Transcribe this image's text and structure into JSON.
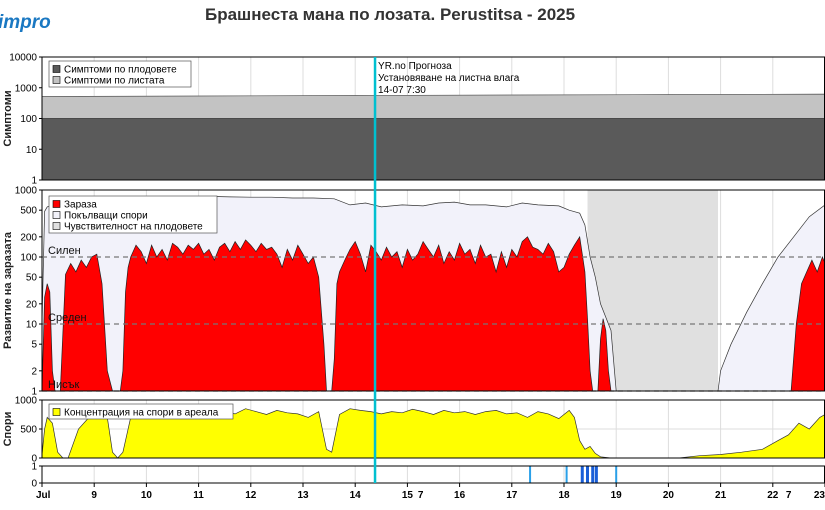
{
  "header": {
    "logo_text": "impro",
    "title": "Брашнеста мана по лозата.  Perustitsa - 2025"
  },
  "colors": {
    "fruit_symptoms": "#5a5a5a",
    "leaf_symptoms": "#c3c3c3",
    "infection": "#ff0000",
    "germinating_spores": "#f2f2fa",
    "fruit_susceptibility": "#e0e0e0",
    "spore_concentration": "#ffff00",
    "forecast_line": "#00c0d0",
    "wetness": "#1a5fd8"
  },
  "forecast": {
    "line1": "YR.no Прогноза",
    "line2": "Установяване на листна влага",
    "line3": "14-07 7:30",
    "x": 14.38
  },
  "chart_data": [
    {
      "type": "area",
      "ylabel": "Симптоми",
      "yscale": "log",
      "ylim": [
        1,
        10000
      ],
      "yticks": [
        "10000",
        "1000",
        "100",
        "10",
        "1"
      ],
      "legend": [
        "Симптоми по плодовете",
        "Симптоми по листата"
      ],
      "legend_position": "top-left",
      "series": [
        {
          "name": "Симптоми по плодовете",
          "x": [
            8,
            23
          ],
          "values": [
            100,
            100
          ]
        },
        {
          "name": "Симптоми по листата",
          "x": [
            8,
            11,
            14,
            17,
            20,
            23
          ],
          "values": [
            520,
            540,
            560,
            580,
            600,
            620
          ]
        }
      ]
    },
    {
      "type": "area",
      "ylabel": "Развитие на заразата",
      "yscale": "log",
      "ylim": [
        1,
        1000
      ],
      "yticks": [
        "1000",
        "500",
        "200",
        "100",
        "50",
        "20",
        "10",
        "5",
        "2",
        "1"
      ],
      "legend": [
        "Зараза",
        "Покълващи спори",
        "Чувствителност на плодовете"
      ],
      "legend_position": "top-left",
      "levels": [
        {
          "label": "Силен",
          "value": 100
        },
        {
          "label": "Среден",
          "value": 10
        },
        {
          "label": "Нисък",
          "value": 1
        }
      ],
      "series": [
        {
          "name": "Зараза",
          "x": [
            8,
            8.05,
            8.1,
            8.15,
            8.2,
            8.25,
            8.3,
            8.35,
            8.45,
            8.55,
            8.65,
            8.75,
            8.85,
            8.95,
            9.05,
            9.15,
            9.25,
            9.35,
            9.45,
            9.5,
            9.55,
            9.6,
            9.65,
            9.7,
            9.8,
            9.9,
            10,
            10.1,
            10.2,
            10.3,
            10.4,
            10.5,
            10.6,
            10.7,
            10.8,
            10.9,
            11,
            11.1,
            11.2,
            11.3,
            11.4,
            11.5,
            11.6,
            11.7,
            11.8,
            11.9,
            12,
            12.1,
            12.2,
            12.3,
            12.4,
            12.5,
            12.6,
            12.7,
            12.8,
            12.9,
            13,
            13.1,
            13.2,
            13.3,
            13.4,
            13.45,
            13.5,
            13.55,
            13.6,
            13.65,
            13.7,
            13.8,
            13.9,
            14,
            14.1,
            14.2,
            14.3,
            14.4,
            14.5,
            14.6,
            14.7,
            14.8,
            14.9,
            15,
            15.1,
            15.2,
            15.3,
            15.4,
            15.5,
            15.6,
            15.7,
            15.8,
            15.9,
            16,
            16.1,
            16.2,
            16.3,
            16.4,
            16.5,
            16.6,
            16.7,
            16.8,
            16.9,
            17,
            17.1,
            17.2,
            17.3,
            17.4,
            17.5,
            17.6,
            17.7,
            17.8,
            17.9,
            18,
            18.1,
            18.2,
            18.3,
            18.4,
            18.45,
            18.5,
            18.55,
            18.6,
            18.65,
            18.7,
            18.75,
            18.8,
            18.85,
            18.9,
            18.95,
            19,
            22.35,
            22.45,
            22.55,
            22.65,
            22.75,
            22.85,
            22.95,
            23
          ],
          "values": [
            1,
            25,
            40,
            30,
            2,
            1,
            1,
            1,
            55,
            80,
            60,
            90,
            70,
            100,
            110,
            40,
            2,
            1,
            1,
            1,
            2,
            30,
            70,
            100,
            150,
            120,
            80,
            150,
            100,
            130,
            90,
            160,
            140,
            110,
            150,
            130,
            160,
            110,
            130,
            90,
            140,
            160,
            120,
            170,
            130,
            180,
            150,
            120,
            160,
            130,
            140,
            110,
            70,
            130,
            90,
            150,
            110,
            80,
            100,
            50,
            5,
            1,
            1,
            1,
            3,
            40,
            60,
            90,
            130,
            170,
            110,
            60,
            150,
            120,
            90,
            140,
            100,
            120,
            70,
            130,
            90,
            110,
            170,
            130,
            100,
            150,
            80,
            120,
            90,
            160,
            110,
            130,
            80,
            150,
            100,
            110,
            60,
            120,
            70,
            130,
            100,
            170,
            200,
            140,
            130,
            110,
            160,
            120,
            60,
            70,
            110,
            150,
            200,
            60,
            12,
            2,
            1,
            1,
            1,
            6,
            12,
            8,
            2,
            1,
            1,
            1,
            1,
            10,
            40,
            60,
            90,
            60,
            100,
            80
          ]
        },
        {
          "name": "Покълващи спори",
          "x": [
            8,
            8.05,
            8.1,
            8.2,
            8.3,
            8.5,
            8.8,
            9,
            9.3,
            9.6,
            9.9,
            10.2,
            10.6,
            11,
            11.3,
            11.6,
            12,
            12.4,
            12.8,
            13.2,
            13.6,
            13.9,
            14.2,
            14.5,
            14.9,
            15.3,
            15.6,
            15.9,
            16.2,
            16.5,
            16.9,
            17.2,
            17.5,
            17.9,
            18.1,
            18.3,
            18.4,
            18.5,
            18.6,
            18.7,
            18.9,
            19,
            19.05,
            20.95,
            21,
            21.2,
            21.5,
            21.8,
            22.1,
            22.4,
            22.7,
            23
          ],
          "values": [
            10,
            480,
            560,
            600,
            640,
            660,
            680,
            700,
            720,
            730,
            740,
            760,
            780,
            790,
            800,
            790,
            780,
            780,
            760,
            760,
            740,
            600,
            640,
            560,
            600,
            580,
            640,
            660,
            600,
            600,
            560,
            640,
            600,
            580,
            500,
            450,
            300,
            100,
            50,
            20,
            8,
            1,
            1,
            1,
            2,
            5,
            15,
            40,
            100,
            200,
            400,
            600
          ]
        },
        {
          "name": "Чувствителност на плодовете",
          "x": [
            18.45,
            18.6,
            18.8,
            19.0,
            20.95
          ],
          "values": [
            100,
            20,
            5,
            1,
            1
          ]
        }
      ]
    },
    {
      "type": "area",
      "ylabel": "Спори",
      "ylim": [
        0,
        1000
      ],
      "yticks": [
        "1000",
        "500",
        "0"
      ],
      "legend": [
        "Концентрация на спори в ареала"
      ],
      "legend_position": "top-left",
      "series": [
        {
          "name": "Концентрация на спори в ареала",
          "x": [
            8,
            8.05,
            8.1,
            8.2,
            8.3,
            8.4,
            8.5,
            8.7,
            8.9,
            9.1,
            9.25,
            9.35,
            9.45,
            9.55,
            9.7,
            9.9,
            10.1,
            10.3,
            10.5,
            10.7,
            10.9,
            11.1,
            11.3,
            11.5,
            11.7,
            11.9,
            12.1,
            12.3,
            12.5,
            12.7,
            12.9,
            13.1,
            13.3,
            13.45,
            13.55,
            13.7,
            13.9,
            14.1,
            14.3,
            14.5,
            14.7,
            14.9,
            15.1,
            15.3,
            15.5,
            15.7,
            15.9,
            16.1,
            16.3,
            16.5,
            16.7,
            16.9,
            17.1,
            17.3,
            17.5,
            17.7,
            17.9,
            18.1,
            18.2,
            18.3,
            18.4,
            18.5,
            18.6,
            18.7,
            18.9,
            20.2,
            20.6,
            21,
            21.4,
            21.8,
            22.1,
            22.3,
            22.5,
            22.7,
            22.9,
            23
          ],
          "values": [
            50,
            500,
            700,
            600,
            100,
            0,
            0,
            500,
            700,
            800,
            700,
            100,
            0,
            100,
            700,
            750,
            700,
            780,
            800,
            750,
            820,
            760,
            780,
            800,
            760,
            850,
            800,
            750,
            820,
            780,
            760,
            700,
            800,
            150,
            100,
            750,
            850,
            820,
            800,
            760,
            800,
            780,
            840,
            800,
            750,
            820,
            780,
            800,
            750,
            800,
            820,
            760,
            780,
            700,
            800,
            760,
            680,
            820,
            700,
            300,
            150,
            200,
            80,
            20,
            0,
            0,
            40,
            60,
            100,
            150,
            300,
            400,
            600,
            500,
            700,
            750
          ]
        }
      ]
    },
    {
      "type": "bar",
      "ylim": [
        0,
        1
      ],
      "yticks": [
        "1",
        "0"
      ],
      "x": [
        17.35,
        18.05,
        18.35,
        18.45,
        18.55,
        18.62,
        19.0
      ],
      "values": [
        1,
        1,
        1,
        1,
        1,
        1,
        1
      ],
      "xticks": [
        "Jul",
        "9",
        "10",
        "11",
        "12",
        "13",
        "14",
        "15",
        "16",
        "17",
        "18",
        "19",
        "20",
        "21",
        "22",
        "23"
      ],
      "xtick_extra": [
        "7",
        "7"
      ]
    }
  ]
}
